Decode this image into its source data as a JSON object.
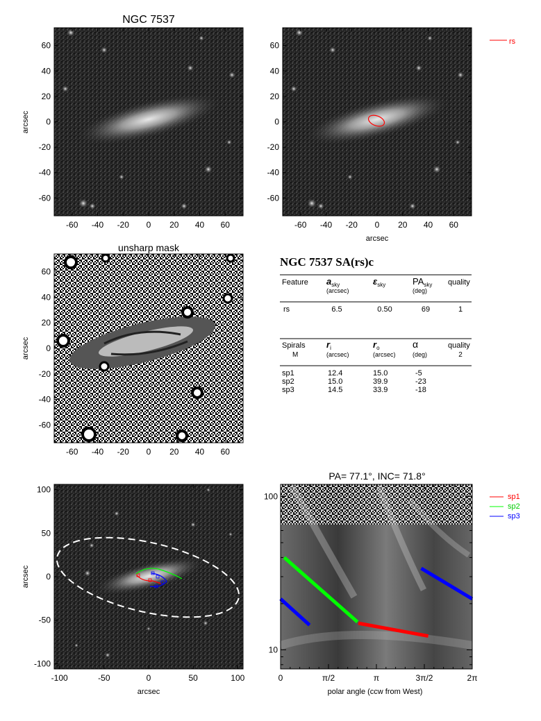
{
  "colors": {
    "rs": "#ff0000",
    "sp1": "#ff0000",
    "sp2": "#00ff00",
    "sp3": "#0000ff",
    "ellipse": "#ffffff",
    "axis": "#000000",
    "background": "#ffffff"
  },
  "chart_data": [
    {
      "panel": "image-top-left",
      "type": "image",
      "title": "NGC 7537",
      "xlabel": "",
      "ylabel": "arcsec",
      "xlim": [
        -74,
        74
      ],
      "ylim": [
        -74,
        74
      ],
      "xticks": [
        -60,
        -40,
        -20,
        0,
        20,
        40,
        60
      ],
      "yticks": [
        -60,
        -40,
        -20,
        0,
        20,
        40,
        60
      ]
    },
    {
      "panel": "image-top-right",
      "type": "image",
      "title": "",
      "xlabel": "arcsec",
      "ylabel": "",
      "xlim": [
        -74,
        74
      ],
      "ylim": [
        -74,
        74
      ],
      "xticks": [
        -60,
        -40,
        -20,
        0,
        20,
        40,
        60
      ],
      "yticks": [
        -60,
        -40,
        -20,
        0,
        20,
        40,
        60
      ],
      "legend": [
        {
          "name": "rs",
          "color": "#ff0000"
        }
      ],
      "overlays": [
        {
          "name": "rs",
          "a_sky": 6.5,
          "eps_sky": 0.5,
          "pa_sky": 69
        }
      ]
    },
    {
      "panel": "unsharp-mask",
      "type": "image",
      "title": "unsharp mask",
      "xlabel": "",
      "ylabel": "arcsec",
      "xlim": [
        -74,
        74
      ],
      "ylim": [
        -74,
        74
      ],
      "xticks": [
        -60,
        -40,
        -20,
        0,
        20,
        40,
        60
      ],
      "yticks": [
        -60,
        -40,
        -20,
        0,
        20,
        40,
        60
      ]
    },
    {
      "panel": "image-bottom-left",
      "type": "image",
      "title": "",
      "xlabel": "arcsec",
      "ylabel": "arcsec",
      "xlim": [
        -106,
        106
      ],
      "ylim": [
        -106,
        106
      ],
      "xticks": [
        -100,
        -50,
        0,
        50,
        100
      ],
      "yticks": [
        -100,
        -50,
        0,
        50,
        100
      ],
      "overlays": [
        {
          "name": "sp1",
          "color": "#ff0000"
        },
        {
          "name": "sp2",
          "color": "#00ff00"
        },
        {
          "name": "sp3",
          "color": "#0000ff"
        },
        {
          "name": "fit-ellipse",
          "color": "#ffffff",
          "pa": 77.1,
          "inc": 71.8
        }
      ]
    },
    {
      "panel": "polar-plot",
      "type": "line",
      "title": "PA=  77.1°, INC=  71.8°",
      "xlabel": "polar angle (ccw from West)",
      "ylabel": "",
      "xlim": [
        0,
        6.2832
      ],
      "ylim": [
        7.5,
        120
      ],
      "yscale": "log",
      "xticklabels": [
        "0",
        "π/2",
        "π",
        "3π/2",
        "2π"
      ],
      "yticklabels": [
        "100",
        "10"
      ],
      "legend": [
        {
          "name": "sp1",
          "color": "#ff0000"
        },
        {
          "name": "sp2",
          "color": "#00ff00"
        },
        {
          "name": "sp3",
          "color": "#0000ff"
        }
      ],
      "series": [
        {
          "name": "sp1",
          "color": "#ff0000",
          "x": [
            2.55,
            4.84
          ],
          "y": [
            14.9,
            12.3
          ]
        },
        {
          "name": "sp2",
          "color": "#00ff00",
          "x": [
            0.12,
            2.52
          ],
          "y": [
            40.0,
            15.2
          ]
        },
        {
          "name": "sp3",
          "color": "#0000ff",
          "x": [
            0.0,
            0.95
          ],
          "y": [
            21.5,
            14.5
          ]
        },
        {
          "name": "sp3",
          "color": "#0000ff",
          "x": [
            4.61,
            6.28
          ],
          "y": [
            34.0,
            21.5
          ]
        }
      ]
    }
  ],
  "table": {
    "title": "NGC 7537  SA(rs)c",
    "header1": {
      "feature": "Feature",
      "a": "a",
      "a_sub": "sky",
      "a_unit": "(arcsec)",
      "eps": "ε",
      "eps_sub": "sky",
      "pa": "PA",
      "pa_sub": "sky",
      "pa_unit": "(deg)",
      "quality": "quality"
    },
    "rows1": [
      {
        "feature": "rs",
        "a": "6.5",
        "eps": "0.50",
        "pa": "69",
        "quality": "1"
      }
    ],
    "header2": {
      "spirals": "Spirals",
      "m": "M",
      "ri": "r",
      "ri_sub": "i",
      "ri_unit": "(arcsec)",
      "ro": "r",
      "ro_sub": "o",
      "ro_unit": "(arcsec)",
      "alpha": "α",
      "alpha_unit": "(deg)",
      "quality": "quality",
      "quality_val": "2"
    },
    "rows2": [
      {
        "name": "sp1",
        "ri": "12.4",
        "ro": "15.0",
        "alpha": "-5"
      },
      {
        "name": "sp2",
        "ri": "15.0",
        "ro": "39.9",
        "alpha": "-23"
      },
      {
        "name": "sp3",
        "ri": "14.5",
        "ro": "33.9",
        "alpha": "-18"
      }
    ]
  }
}
